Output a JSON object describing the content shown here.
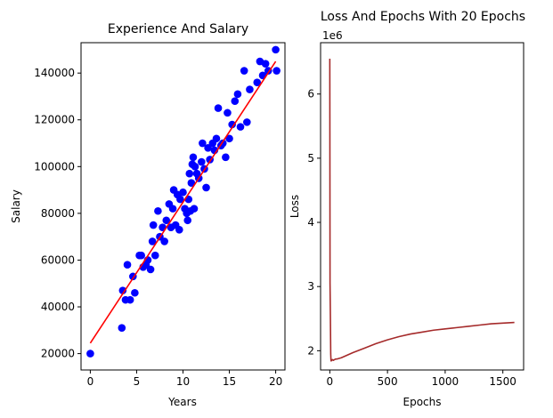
{
  "chart_data": [
    {
      "type": "scatter",
      "title": "Experience And Salary",
      "xlabel": "Years",
      "ylabel": "Salary",
      "xlim": [
        -1,
        21
      ],
      "ylim": [
        13000,
        153000
      ],
      "xticks": [
        0,
        5,
        10,
        15,
        20
      ],
      "yticks": [
        20000,
        40000,
        60000,
        80000,
        100000,
        120000,
        140000
      ],
      "grid": false,
      "point_color": "#0000ff",
      "line_color": "#ff0000",
      "points": [
        [
          0,
          20000
        ],
        [
          3.4,
          31000
        ],
        [
          3.5,
          47000
        ],
        [
          3.8,
          43000
        ],
        [
          4.0,
          58000
        ],
        [
          4.3,
          43000
        ],
        [
          4.6,
          53000
        ],
        [
          4.8,
          46000
        ],
        [
          5.3,
          62000
        ],
        [
          5.5,
          62000
        ],
        [
          5.7,
          57000
        ],
        [
          6.0,
          58000
        ],
        [
          6.2,
          60000
        ],
        [
          6.5,
          56000
        ],
        [
          6.7,
          68000
        ],
        [
          6.8,
          75000
        ],
        [
          7.0,
          62000
        ],
        [
          7.3,
          81000
        ],
        [
          7.5,
          70000
        ],
        [
          7.8,
          74000
        ],
        [
          8.0,
          68000
        ],
        [
          8.2,
          77000
        ],
        [
          8.5,
          84000
        ],
        [
          8.7,
          74000
        ],
        [
          8.9,
          82000
        ],
        [
          9.0,
          90000
        ],
        [
          9.2,
          75000
        ],
        [
          9.4,
          88000
        ],
        [
          9.6,
          73000
        ],
        [
          9.7,
          86000
        ],
        [
          10.0,
          89000
        ],
        [
          10.2,
          82000
        ],
        [
          10.4,
          80000
        ],
        [
          10.5,
          77000
        ],
        [
          10.6,
          86000
        ],
        [
          10.7,
          97000
        ],
        [
          10.8,
          81000
        ],
        [
          10.9,
          93000
        ],
        [
          11.0,
          101000
        ],
        [
          11.1,
          104000
        ],
        [
          11.2,
          82000
        ],
        [
          11.3,
          100000
        ],
        [
          11.5,
          97000
        ],
        [
          11.7,
          95000
        ],
        [
          12.0,
          102000
        ],
        [
          12.1,
          110000
        ],
        [
          12.3,
          99000
        ],
        [
          12.5,
          91000
        ],
        [
          12.7,
          108000
        ],
        [
          12.9,
          103000
        ],
        [
          13.2,
          110000
        ],
        [
          13.4,
          107000
        ],
        [
          13.6,
          112000
        ],
        [
          13.8,
          125000
        ],
        [
          14.1,
          109000
        ],
        [
          14.3,
          110000
        ],
        [
          14.6,
          104000
        ],
        [
          14.8,
          123000
        ],
        [
          15.0,
          112000
        ],
        [
          15.3,
          118000
        ],
        [
          15.6,
          128000
        ],
        [
          15.9,
          131000
        ],
        [
          16.2,
          117000
        ],
        [
          16.6,
          141000
        ],
        [
          16.9,
          119000
        ],
        [
          17.2,
          133000
        ],
        [
          18.0,
          136000
        ],
        [
          18.3,
          145000
        ],
        [
          18.6,
          139000
        ],
        [
          18.9,
          144000
        ],
        [
          19.2,
          141000
        ],
        [
          20.0,
          150000
        ],
        [
          20.1,
          141000
        ]
      ],
      "fit_line": [
        [
          0,
          24500
        ],
        [
          20,
          145000
        ]
      ]
    },
    {
      "type": "line",
      "title": "Loss And Epochs With 20 Epochs",
      "xlabel": "Epochs",
      "ylabel": "Loss",
      "offset_text": "1e6",
      "xlim": [
        -80,
        1680
      ],
      "ylim": [
        1.7,
        6.8
      ],
      "xticks": [
        0,
        500,
        1000,
        1500
      ],
      "yticks": [
        2,
        3,
        4,
        5,
        6
      ],
      "grid": false,
      "series": [
        {
          "color": "#a52a2a",
          "x": [
            0,
            2,
            5,
            8,
            10,
            12,
            15,
            20,
            25,
            30,
            40,
            50,
            60,
            80,
            100,
            150,
            200,
            300,
            400,
            500,
            600,
            700,
            800,
            900,
            1000,
            1100,
            1200,
            1300,
            1400,
            1500,
            1600
          ],
          "y": [
            6.55,
            3.05,
            2.55,
            1.95,
            1.86,
            1.84,
            1.85,
            1.86,
            1.86,
            1.85,
            1.86,
            1.87,
            1.87,
            1.88,
            1.89,
            1.93,
            1.97,
            2.04,
            2.11,
            2.17,
            2.22,
            2.26,
            2.29,
            2.32,
            2.34,
            2.36,
            2.38,
            2.4,
            2.42,
            2.43,
            2.44
          ]
        }
      ]
    }
  ]
}
